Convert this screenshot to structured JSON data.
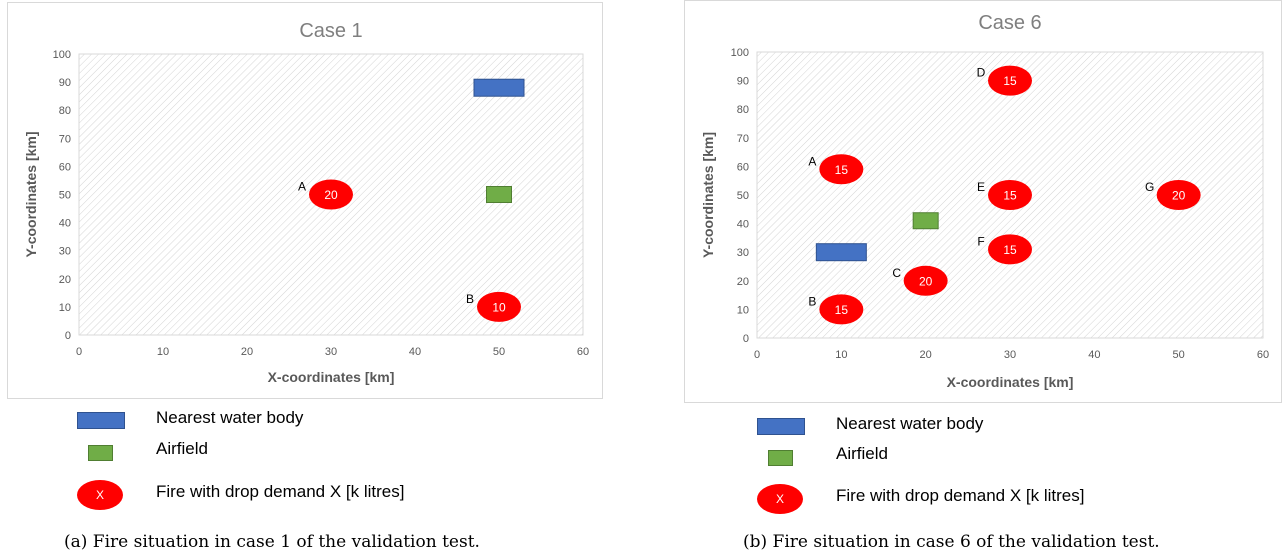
{
  "chart_data": [
    {
      "type": "scatter",
      "title": "Case 1",
      "xlabel": "X-coordinates [km]",
      "ylabel": "Y-coordinates [km]",
      "xlim": [
        0,
        60
      ],
      "ylim": [
        0,
        100
      ],
      "xticks": [
        0,
        10,
        20,
        30,
        40,
        50,
        60
      ],
      "yticks": [
        0,
        10,
        20,
        30,
        40,
        50,
        60,
        70,
        80,
        90,
        100
      ],
      "grid": "hatched plot area",
      "water_bodies": [
        {
          "x": 50,
          "y": 88
        }
      ],
      "airfields": [
        {
          "x": 50,
          "y": 50
        }
      ],
      "fires": [
        {
          "label": "A",
          "x": 30,
          "y": 50,
          "demand": "20"
        },
        {
          "label": "B",
          "x": 50,
          "y": 10,
          "demand": "10"
        }
      ]
    },
    {
      "type": "scatter",
      "title": "Case 6",
      "xlabel": "X-coordinates [km]",
      "ylabel": "Y-coordinates [km]",
      "xlim": [
        0,
        60
      ],
      "ylim": [
        0,
        100
      ],
      "xticks": [
        0,
        10,
        20,
        30,
        40,
        50,
        60
      ],
      "yticks": [
        0,
        10,
        20,
        30,
        40,
        50,
        60,
        70,
        80,
        90,
        100
      ],
      "grid": "hatched plot area",
      "water_bodies": [
        {
          "x": 10,
          "y": 30
        }
      ],
      "airfields": [
        {
          "x": 20,
          "y": 41
        }
      ],
      "fires": [
        {
          "label": "A",
          "x": 10,
          "y": 59,
          "demand": "15"
        },
        {
          "label": "B",
          "x": 10,
          "y": 10,
          "demand": "15"
        },
        {
          "label": "C",
          "x": 20,
          "y": 20,
          "demand": "20"
        },
        {
          "label": "D",
          "x": 30,
          "y": 90,
          "demand": "15"
        },
        {
          "label": "E",
          "x": 30,
          "y": 50,
          "demand": "15"
        },
        {
          "label": "F",
          "x": 30,
          "y": 31,
          "demand": "15"
        },
        {
          "label": "G",
          "x": 50,
          "y": 50,
          "demand": "20"
        }
      ]
    }
  ],
  "legends": [
    {
      "water_label": "Nearest water body",
      "airfield_label": "Airfield",
      "fire_label": "Fire with drop demand X [k litres]",
      "fire_symbol_text": "X"
    },
    {
      "water_label": "Nearest water body",
      "airfield_label": "Airfield",
      "fire_label": "Fire with drop demand X [k litres]",
      "fire_symbol_text": "X"
    }
  ],
  "captions": [
    "(a) Fire situation in case 1 of the validation test.",
    "(b) Fire situation in case 6 of the validation test."
  ],
  "colors": {
    "water": "#4472c4",
    "airfield": "#70ad47",
    "fire": "#ff0000",
    "title": "#7f7f7f",
    "axis_label": "#595959"
  }
}
